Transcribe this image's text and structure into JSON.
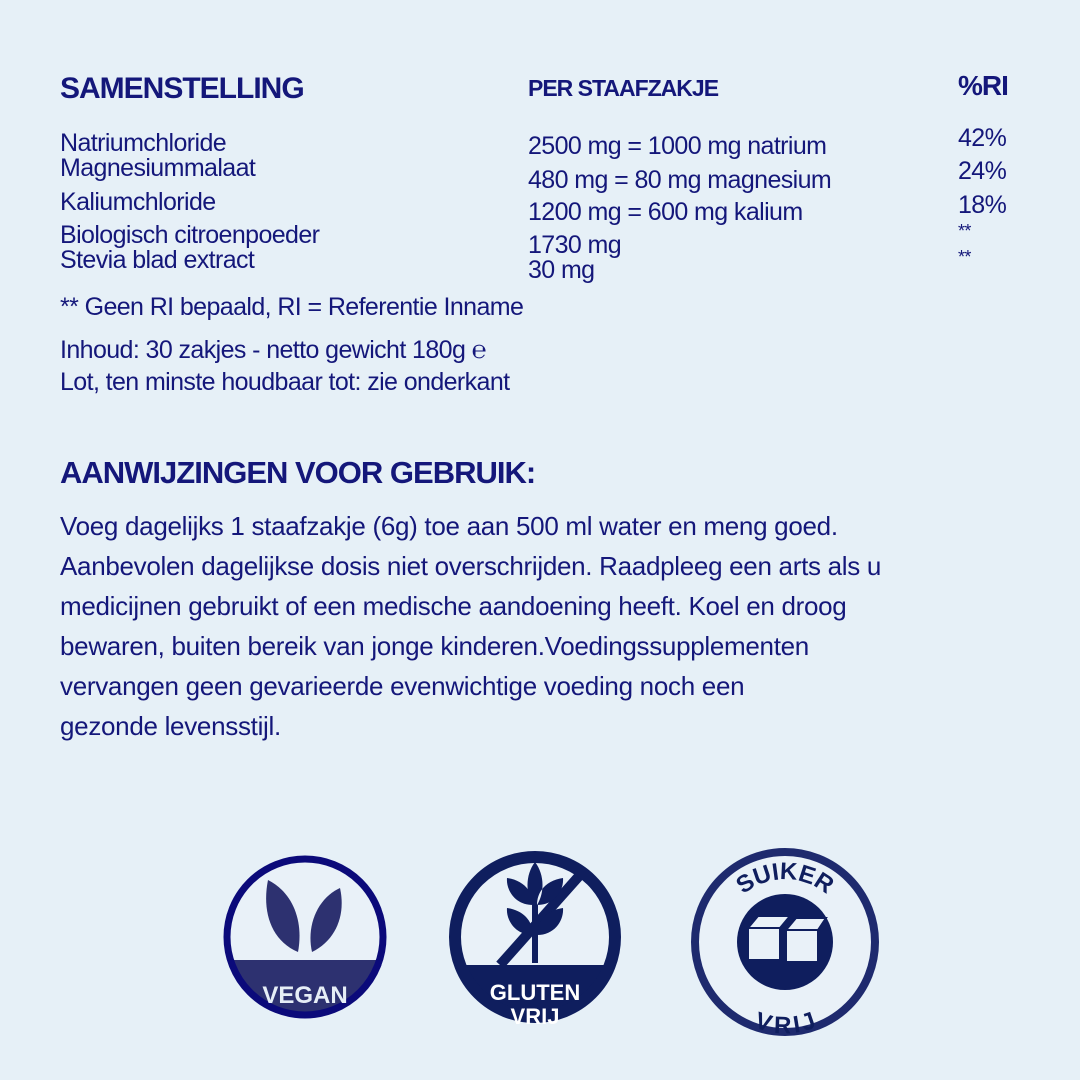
{
  "composition": {
    "heading": "SAMENSTELLING",
    "per_heading": "PER STAAFZAKJE",
    "ri_heading": "%RI",
    "rows": [
      {
        "name": "Natriumchloride",
        "amount": "2500 mg = 1000 mg natrium",
        "ri": "42%"
      },
      {
        "name": "Magnesiummalaat",
        "amount": "480 mg = 80 mg magnesium",
        "ri": "24%"
      },
      {
        "name": "Kaliumchloride",
        "amount": "1200 mg = 600 mg kalium",
        "ri": "18%"
      },
      {
        "name": "Biologisch citroenpoeder",
        "amount": "1730 mg",
        "ri": "**"
      },
      {
        "name": "Stevia blad extract",
        "amount": "30 mg",
        "ri": "**"
      }
    ],
    "footnote": "** Geen RI bepaald, RI = Referentie Inname",
    "content": "Inhoud: 30 zakjes - netto gewicht 180g",
    "estimated_sign": "℮",
    "lot": "Lot, ten minste houdbaar tot: zie onderkant"
  },
  "usage": {
    "heading": "AANWIJZINGEN VOOR GEBRUIK:",
    "lines": [
      "Voeg dagelijks 1 staafzakje (6g) toe aan 500 ml water en meng goed.",
      "Aanbevolen dagelijkse dosis niet overschrijden. Raadpleeg een arts als u",
      "medicijnen gebruikt of een medische aandoening heeft. Koel en droog",
      "bewaren, buiten bereik van jonge kinderen.Voedingssupplementen",
      "vervangen geen gevarieerde evenwichtige voeding noch een",
      "gezonde levensstijl."
    ]
  },
  "badges": {
    "vegan": "VEGAN",
    "gluten_top": "GLUTEN",
    "gluten_bottom": "VRIJ",
    "sugar_top": "SUIKER",
    "sugar_bottom": "VRIJ"
  },
  "colors": {
    "text": "#14177a",
    "background": "#e6f0f7",
    "badge": "#0f1e5e"
  }
}
